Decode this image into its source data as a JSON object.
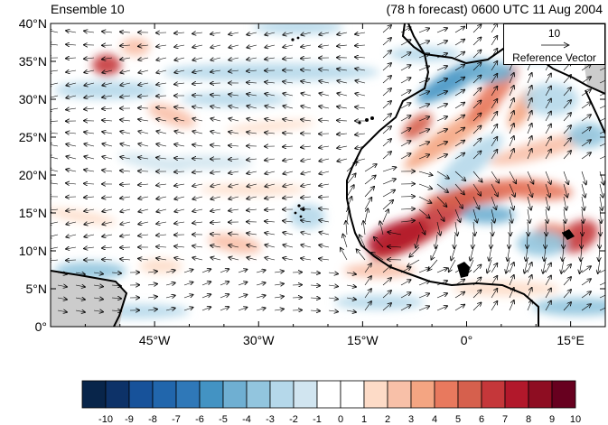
{
  "header": {
    "left_title": "Ensemble 10",
    "right_title": "(78 h forecast) 0600 UTC 11 Aug 2004"
  },
  "map": {
    "lat_labels": [
      "40°N",
      "35°N",
      "30°N",
      "25°N",
      "20°N",
      "15°N",
      "10°N",
      "5°N",
      "0°"
    ],
    "lon_labels": [
      "45°W",
      "30°W",
      "15°W",
      "0°",
      "15°E"
    ],
    "lon_extent": [
      -60,
      20
    ],
    "lat_extent": [
      0,
      40
    ],
    "land_mask_color": "#cccccc",
    "coast_color": "#000000"
  },
  "reference_vector": {
    "magnitude": "10",
    "label": "Reference Vector"
  },
  "colorbar": {
    "labels": [
      "-10",
      "-9",
      "-8",
      "-7",
      "-6",
      "-5",
      "-4",
      "-3",
      "-2",
      "-1",
      "0",
      "1",
      "2",
      "3",
      "4",
      "5",
      "6",
      "7",
      "8",
      "9",
      "10"
    ],
    "colors": [
      "#08254a",
      "#0d3268",
      "#17529a",
      "#2166ac",
      "#2f78b8",
      "#4393c3",
      "#6fafd2",
      "#92c5de",
      "#b5d8ea",
      "#d1e5f0",
      "#ffffff",
      "#ffffff",
      "#fddbc7",
      "#f8c0a8",
      "#f4a582",
      "#e8795e",
      "#d6604d",
      "#c5373a",
      "#b2182b",
      "#8e0d22",
      "#67001f"
    ]
  }
}
